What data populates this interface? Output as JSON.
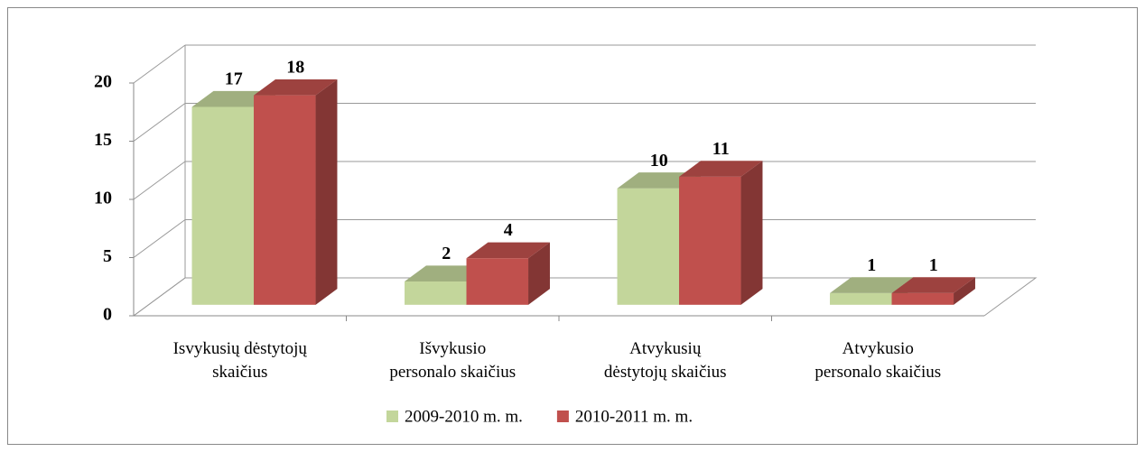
{
  "chart_data": {
    "type": "bar3d",
    "categories": [
      [
        "Isvykusių dėstytojų",
        "skaičius"
      ],
      [
        "Išvykusio",
        "personalo skaičius"
      ],
      [
        "Atvykusių",
        "dėstytojų skaičius"
      ],
      [
        "Atvykusio",
        "personalo skaičius"
      ]
    ],
    "series": [
      {
        "name": "2009-2010 m. m.",
        "color": "#c3d69b",
        "values": [
          17,
          2,
          10,
          1
        ]
      },
      {
        "name": "2010-2011 m. m.",
        "color": "#c0504d",
        "values": [
          18,
          4,
          11,
          1
        ]
      }
    ],
    "ylim": [
      0,
      20
    ],
    "yticks": [
      0,
      5,
      10,
      15,
      20
    ],
    "grid": true,
    "legend": "bottom"
  }
}
